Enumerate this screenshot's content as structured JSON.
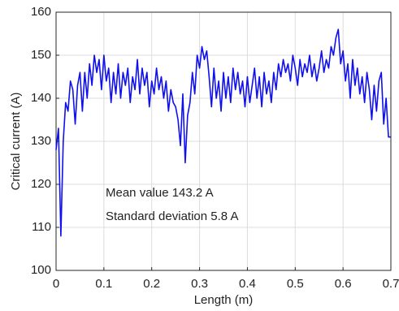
{
  "chart_data": {
    "type": "line",
    "xlabel": "Length (m)",
    "ylabel": "Critical current (A)",
    "annotations": [
      "Mean value 143.2 A",
      "Standard deviation 5.8 A"
    ],
    "x": [
      0,
      0.005,
      0.01,
      0.015,
      0.02,
      0.025,
      0.03,
      0.035,
      0.04,
      0.045,
      0.05,
      0.055,
      0.06,
      0.065,
      0.07,
      0.075,
      0.08,
      0.085,
      0.09,
      0.095,
      0.1,
      0.105,
      0.11,
      0.115,
      0.12,
      0.125,
      0.13,
      0.135,
      0.14,
      0.145,
      0.15,
      0.155,
      0.16,
      0.165,
      0.17,
      0.175,
      0.18,
      0.185,
      0.19,
      0.195,
      0.2,
      0.205,
      0.21,
      0.215,
      0.22,
      0.225,
      0.23,
      0.235,
      0.24,
      0.245,
      0.25,
      0.255,
      0.26,
      0.265,
      0.27,
      0.275,
      0.28,
      0.285,
      0.29,
      0.295,
      0.3,
      0.305,
      0.31,
      0.315,
      0.32,
      0.325,
      0.33,
      0.335,
      0.34,
      0.345,
      0.35,
      0.355,
      0.36,
      0.365,
      0.37,
      0.375,
      0.38,
      0.385,
      0.39,
      0.395,
      0.4,
      0.405,
      0.41,
      0.415,
      0.42,
      0.425,
      0.43,
      0.435,
      0.44,
      0.445,
      0.45,
      0.455,
      0.46,
      0.465,
      0.47,
      0.475,
      0.48,
      0.485,
      0.49,
      0.495,
      0.5,
      0.505,
      0.51,
      0.515,
      0.52,
      0.525,
      0.53,
      0.535,
      0.54,
      0.545,
      0.55,
      0.555,
      0.56,
      0.565,
      0.57,
      0.575,
      0.58,
      0.585,
      0.59,
      0.595,
      0.6,
      0.605,
      0.61,
      0.615,
      0.62,
      0.625,
      0.63,
      0.635,
      0.64,
      0.645,
      0.65,
      0.655,
      0.66,
      0.665,
      0.67,
      0.675,
      0.68,
      0.685,
      0.69,
      0.695,
      0.7
    ],
    "series": [
      {
        "name": "Critical current",
        "color": "#1010ee",
        "values": [
          128,
          133,
          108,
          130,
          139,
          137,
          144,
          142,
          134,
          143,
          146,
          137,
          146,
          140,
          148,
          143,
          150,
          146,
          149,
          142,
          150,
          144,
          147,
          139,
          146,
          141,
          148,
          140,
          146,
          143,
          147,
          139,
          145,
          142,
          149,
          141,
          147,
          143,
          146,
          138,
          144,
          141,
          147,
          142,
          145,
          140,
          144,
          137,
          142,
          139,
          138,
          135,
          129,
          141,
          125,
          136,
          139,
          146,
          141,
          150,
          147,
          152,
          149,
          151,
          145,
          138,
          147,
          140,
          144,
          137,
          146,
          140,
          145,
          139,
          147,
          142,
          146,
          141,
          144,
          138,
          145,
          139,
          143,
          147,
          140,
          145,
          138,
          146,
          141,
          144,
          139,
          146,
          142,
          148,
          145,
          149,
          146,
          148,
          144,
          150,
          147,
          143,
          149,
          145,
          148,
          146,
          150,
          145,
          148,
          144,
          147,
          151,
          146,
          149,
          147,
          152,
          150,
          154,
          156,
          148,
          151,
          144,
          148,
          140,
          149,
          143,
          147,
          141,
          145,
          139,
          146,
          142,
          135,
          143,
          137,
          144,
          146,
          134,
          140,
          131,
          131
        ]
      }
    ],
    "xlim": [
      0,
      0.7
    ],
    "xticks": [
      0,
      0.1,
      0.2,
      0.3,
      0.4,
      0.5,
      0.6,
      0.7
    ],
    "ylim": [
      100,
      160
    ],
    "yticks": [
      100,
      110,
      120,
      130,
      140,
      150,
      160
    ],
    "grid": true
  }
}
